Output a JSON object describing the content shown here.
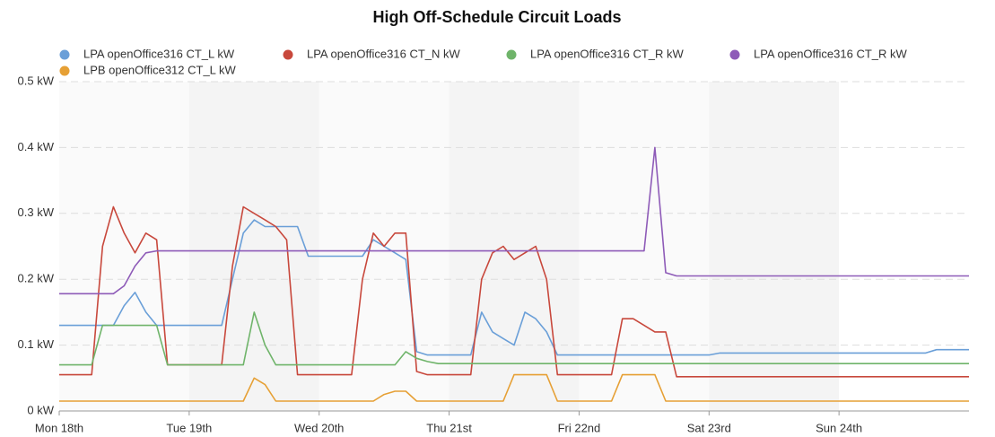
{
  "chart_data": {
    "type": "line",
    "title": "High Off-Schedule Circuit Loads",
    "x": [
      0,
      2,
      4,
      6,
      8,
      10,
      12,
      14,
      16,
      18,
      20,
      22,
      24,
      26,
      28,
      30,
      32,
      34,
      36,
      38,
      40,
      42,
      44,
      46,
      48,
      50,
      52,
      54,
      56,
      58,
      60,
      62,
      64,
      66,
      68,
      70,
      72,
      74,
      76,
      78,
      80,
      82,
      84,
      86,
      88,
      90,
      92,
      94,
      96,
      98,
      100,
      102,
      104,
      106,
      108,
      110,
      112,
      114,
      116,
      118,
      120,
      122,
      124,
      126,
      128,
      130,
      132,
      134,
      136,
      138,
      140,
      142,
      144,
      146,
      148,
      150,
      152,
      154,
      156,
      158,
      160,
      162,
      164,
      166,
      168
    ],
    "xlim": [
      0,
      168
    ],
    "xticks": [
      {
        "value": 0,
        "label": "Mon 18th"
      },
      {
        "value": 24,
        "label": "Tue 19th"
      },
      {
        "value": 48,
        "label": "Wed 20th"
      },
      {
        "value": 72,
        "label": "Thu 21st"
      },
      {
        "value": 96,
        "label": "Fri 22nd"
      },
      {
        "value": 120,
        "label": "Sat 23rd"
      },
      {
        "value": 144,
        "label": "Sun 24th"
      }
    ],
    "ylim": [
      0,
      0.5
    ],
    "yticks": [
      {
        "value": 0,
        "label": "0 kW"
      },
      {
        "value": 0.1,
        "label": "0.1 kW"
      },
      {
        "value": 0.2,
        "label": "0.2 kW"
      },
      {
        "value": 0.3,
        "label": "0.3 kW"
      },
      {
        "value": 0.4,
        "label": "0.4 kW"
      },
      {
        "value": 0.5,
        "label": "0.5 kW"
      }
    ],
    "grid": true,
    "series": [
      {
        "name": "LPA openOffice316 CT_L kW",
        "color": "#6a9fd8",
        "values": [
          0.13,
          0.13,
          0.13,
          0.13,
          0.13,
          0.13,
          0.16,
          0.18,
          0.15,
          0.13,
          0.13,
          0.13,
          0.13,
          0.13,
          0.13,
          0.13,
          0.2,
          0.27,
          0.29,
          0.28,
          0.28,
          0.28,
          0.28,
          0.235,
          0.235,
          0.235,
          0.235,
          0.235,
          0.235,
          0.26,
          0.25,
          0.24,
          0.23,
          0.09,
          0.085,
          0.085,
          0.085,
          0.085,
          0.085,
          0.15,
          0.12,
          0.11,
          0.1,
          0.15,
          0.14,
          0.12,
          0.085,
          0.085,
          0.085,
          0.085,
          0.085,
          0.085,
          0.085,
          0.085,
          0.085,
          0.085,
          0.085,
          0.085,
          0.085,
          0.085,
          0.085,
          0.088,
          0.088,
          0.088,
          0.088,
          0.088,
          0.088,
          0.088,
          0.088,
          0.088,
          0.088,
          0.088,
          0.088,
          0.088,
          0.088,
          0.088,
          0.088,
          0.088,
          0.088,
          0.088,
          0.088,
          0.093,
          0.093,
          0.093,
          0.093
        ]
      },
      {
        "name": "LPA openOffice316 CT_N kW",
        "color": "#c8483c",
        "values": [
          0.055,
          0.055,
          0.055,
          0.055,
          0.25,
          0.31,
          0.27,
          0.24,
          0.27,
          0.26,
          0.07,
          0.07,
          0.07,
          0.07,
          0.07,
          0.07,
          0.22,
          0.31,
          0.3,
          0.29,
          0.28,
          0.26,
          0.055,
          0.055,
          0.055,
          0.055,
          0.055,
          0.055,
          0.2,
          0.27,
          0.25,
          0.27,
          0.27,
          0.06,
          0.055,
          0.055,
          0.055,
          0.055,
          0.055,
          0.2,
          0.24,
          0.25,
          0.23,
          0.24,
          0.25,
          0.2,
          0.055,
          0.055,
          0.055,
          0.055,
          0.055,
          0.055,
          0.14,
          0.14,
          0.13,
          0.12,
          0.12,
          0.052,
          0.052,
          0.052,
          0.052,
          0.052,
          0.052,
          0.052,
          0.052,
          0.052,
          0.052,
          0.052,
          0.052,
          0.052,
          0.052,
          0.052,
          0.052,
          0.052,
          0.052,
          0.052,
          0.052,
          0.052,
          0.052,
          0.052,
          0.052,
          0.052,
          0.052,
          0.052,
          0.052
        ]
      },
      {
        "name": "LPA openOffice316 CT_R kW",
        "color": "#6fb46a",
        "values": [
          0.07,
          0.07,
          0.07,
          0.07,
          0.13,
          0.13,
          0.13,
          0.13,
          0.13,
          0.13,
          0.07,
          0.07,
          0.07,
          0.07,
          0.07,
          0.07,
          0.07,
          0.07,
          0.15,
          0.1,
          0.07,
          0.07,
          0.07,
          0.07,
          0.07,
          0.07,
          0.07,
          0.07,
          0.07,
          0.07,
          0.07,
          0.07,
          0.09,
          0.08,
          0.075,
          0.072,
          0.072,
          0.072,
          0.072,
          0.072,
          0.072,
          0.072,
          0.072,
          0.072,
          0.072,
          0.072,
          0.072,
          0.072,
          0.072,
          0.072,
          0.072,
          0.072,
          0.072,
          0.072,
          0.072,
          0.072,
          0.072,
          0.072,
          0.072,
          0.072,
          0.072,
          0.072,
          0.072,
          0.072,
          0.072,
          0.072,
          0.072,
          0.072,
          0.072,
          0.072,
          0.072,
          0.072,
          0.072,
          0.072,
          0.072,
          0.072,
          0.072,
          0.072,
          0.072,
          0.072,
          0.072,
          0.072,
          0.072,
          0.072,
          0.072
        ]
      },
      {
        "name": "LPA openOffice316 CT_R kW",
        "color": "#8e5bb8",
        "values": [
          0.178,
          0.178,
          0.178,
          0.178,
          0.178,
          0.178,
          0.19,
          0.22,
          0.24,
          0.243,
          0.243,
          0.243,
          0.243,
          0.243,
          0.243,
          0.243,
          0.243,
          0.243,
          0.243,
          0.243,
          0.243,
          0.243,
          0.243,
          0.243,
          0.243,
          0.243,
          0.243,
          0.243,
          0.243,
          0.243,
          0.243,
          0.243,
          0.243,
          0.243,
          0.243,
          0.243,
          0.243,
          0.243,
          0.243,
          0.243,
          0.243,
          0.243,
          0.243,
          0.243,
          0.243,
          0.243,
          0.243,
          0.243,
          0.243,
          0.243,
          0.243,
          0.243,
          0.243,
          0.243,
          0.243,
          0.4,
          0.21,
          0.205,
          0.205,
          0.205,
          0.205,
          0.205,
          0.205,
          0.205,
          0.205,
          0.205,
          0.205,
          0.205,
          0.205,
          0.205,
          0.205,
          0.205,
          0.205,
          0.205,
          0.205,
          0.205,
          0.205,
          0.205,
          0.205,
          0.205,
          0.205,
          0.205,
          0.205,
          0.205,
          0.205
        ]
      },
      {
        "name": "LPB openOffice312 CT_L kW",
        "color": "#e6a035",
        "values": [
          0.015,
          0.015,
          0.015,
          0.015,
          0.015,
          0.015,
          0.015,
          0.015,
          0.015,
          0.015,
          0.015,
          0.015,
          0.015,
          0.015,
          0.015,
          0.015,
          0.015,
          0.015,
          0.05,
          0.04,
          0.015,
          0.015,
          0.015,
          0.015,
          0.015,
          0.015,
          0.015,
          0.015,
          0.015,
          0.015,
          0.025,
          0.03,
          0.03,
          0.015,
          0.015,
          0.015,
          0.015,
          0.015,
          0.015,
          0.015,
          0.015,
          0.015,
          0.055,
          0.055,
          0.055,
          0.055,
          0.015,
          0.015,
          0.015,
          0.015,
          0.015,
          0.015,
          0.055,
          0.055,
          0.055,
          0.055,
          0.015,
          0.015,
          0.015,
          0.015,
          0.015,
          0.015,
          0.015,
          0.015,
          0.015,
          0.015,
          0.015,
          0.015,
          0.015,
          0.015,
          0.015,
          0.015,
          0.015,
          0.015,
          0.015,
          0.015,
          0.015,
          0.015,
          0.015,
          0.015,
          0.015,
          0.015,
          0.015,
          0.015,
          0.015
        ]
      }
    ]
  }
}
